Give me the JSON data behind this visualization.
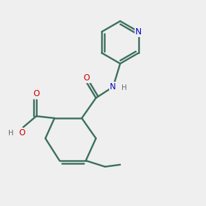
{
  "background_color": "#efefef",
  "bond_color": "#3d7060",
  "bond_width": 1.8,
  "atom_colors": {
    "C": "#3d7060",
    "N": "#0000cc",
    "O": "#cc0000",
    "H": "#666666"
  },
  "figsize": [
    3.0,
    3.0
  ],
  "dpi": 100
}
